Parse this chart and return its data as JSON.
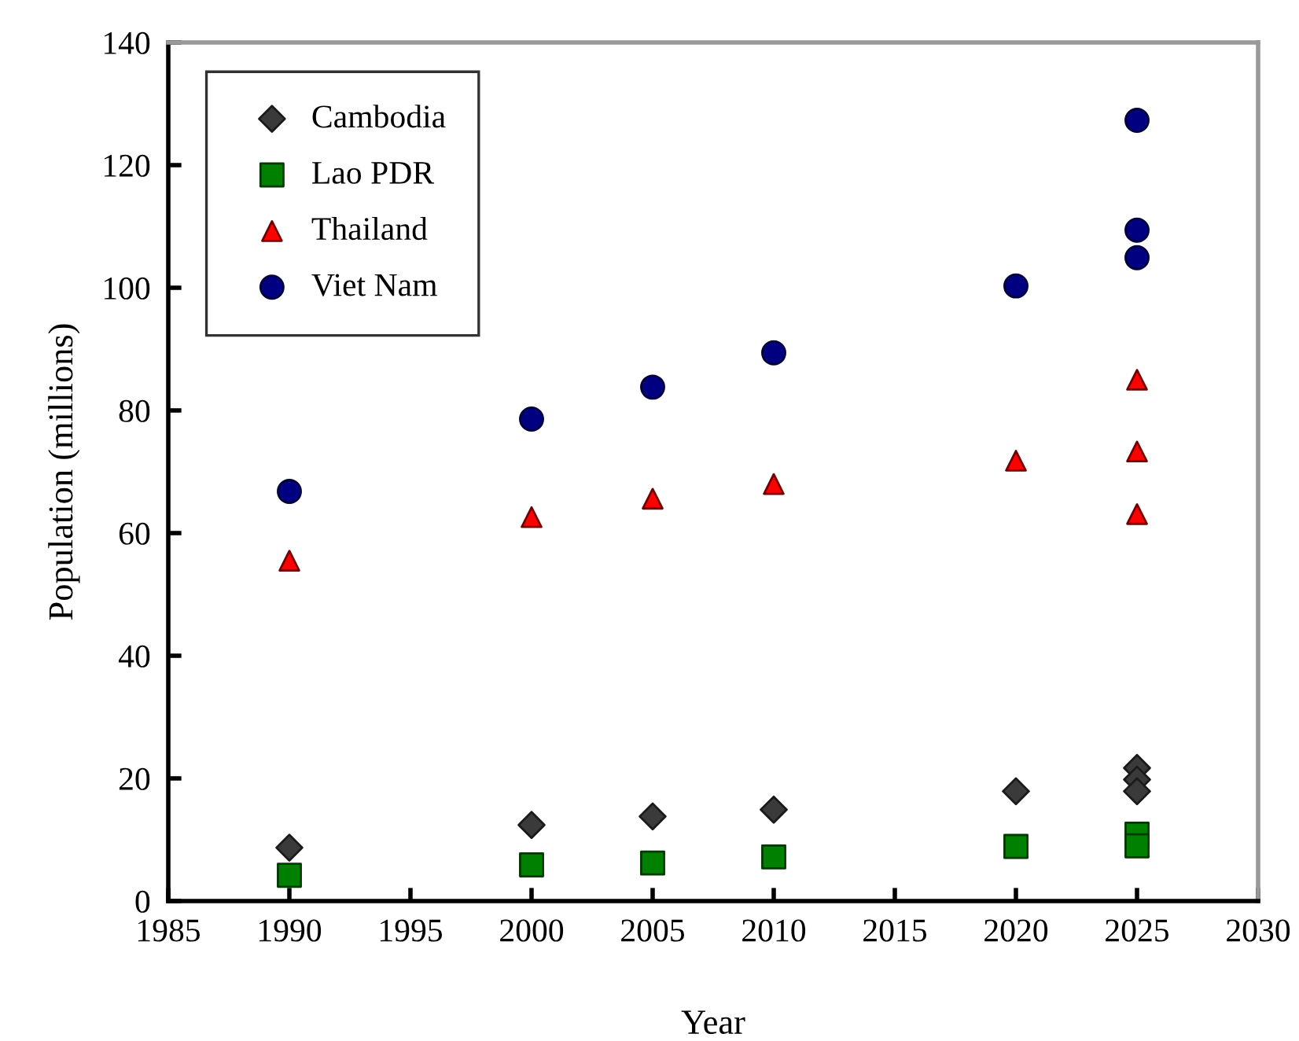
{
  "chart_data": {
    "type": "scatter",
    "xlabel": "Year",
    "ylabel": "Population (millions)",
    "xlim": [
      1985,
      2030
    ],
    "xticks": [
      1985,
      1990,
      1995,
      2000,
      2005,
      2010,
      2015,
      2020,
      2025,
      2030
    ],
    "ylim": [
      0,
      140
    ],
    "yticks": [
      0,
      20,
      40,
      60,
      80,
      100,
      120,
      140
    ],
    "grid": false,
    "legend": "top left",
    "series": [
      {
        "name": "Cambodia",
        "color": "#3a3a3a",
        "marker": "diamond",
        "x": [
          1990,
          2000,
          2005,
          2010,
          2020,
          2025,
          2025,
          2025
        ],
        "values": [
          8.7,
          12.4,
          13.8,
          14.9,
          17.9,
          21.7,
          19.8,
          17.9
        ]
      },
      {
        "name": "Lao PDR",
        "color": "#008000",
        "marker": "square",
        "x": [
          1990,
          2000,
          2005,
          2010,
          2020,
          2025,
          2025
        ],
        "values": [
          4.2,
          5.9,
          6.2,
          7.2,
          8.9,
          10.9,
          9.0
        ]
      },
      {
        "name": "Thailand",
        "color": "#ff0000",
        "marker": "triangle",
        "x": [
          1990,
          2000,
          2005,
          2010,
          2020,
          2025,
          2025,
          2025
        ],
        "values": [
          55.5,
          62.6,
          65.6,
          68.0,
          71.8,
          85.0,
          73.3,
          63.1
        ]
      },
      {
        "name": "Viet Nam",
        "color": "#000080",
        "marker": "circle",
        "x": [
          1990,
          2000,
          2005,
          2010,
          2020,
          2025,
          2025,
          2025
        ],
        "values": [
          66.8,
          78.6,
          83.8,
          89.4,
          100.3,
          127.3,
          109.4,
          104.9
        ]
      }
    ]
  }
}
